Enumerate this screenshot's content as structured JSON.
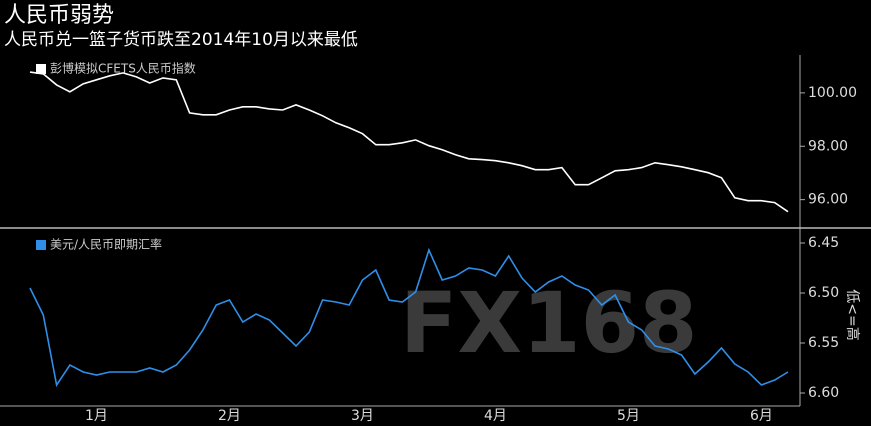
{
  "chart_data": [
    {
      "type": "line",
      "title": "人民币弱势",
      "subtitle": "人民币兑一篮子货币跌至2014年10月以来最低",
      "series": [
        {
          "name": "彭博模拟CFETS人民币指数",
          "color": "#ffffff",
          "values": [
            100.78,
            100.71,
            100.3,
            100.04,
            100.34,
            100.49,
            100.64,
            100.75,
            100.6,
            100.37,
            100.56,
            100.49,
            99.25,
            99.18,
            99.18,
            99.36,
            99.48,
            99.48,
            99.4,
            99.36,
            99.55,
            99.36,
            99.14,
            98.88,
            98.69,
            98.47,
            98.06,
            98.06,
            98.13,
            98.24,
            98.02,
            97.87,
            97.68,
            97.53,
            97.5,
            97.46,
            97.38,
            97.27,
            97.12,
            97.12,
            97.2,
            96.56,
            96.56,
            96.82,
            97.08,
            97.12,
            97.2,
            97.38,
            97.31,
            97.23,
            97.12,
            97.01,
            96.82,
            96.07,
            95.96,
            95.96,
            95.89,
            95.55
          ]
        }
      ],
      "ylim": [
        95.2,
        101.4
      ],
      "yticks": [
        {
          "value": 96,
          "label": "96.00"
        },
        {
          "value": 98,
          "label": "98.00"
        },
        {
          "value": 100,
          "label": "100.00"
        }
      ]
    },
    {
      "type": "line",
      "annotation": "低<=高",
      "watermark": "FX168",
      "categories": [
        null,
        null,
        null,
        null,
        null,
        "1月",
        null,
        null,
        null,
        null,
        null,
        null,
        null,
        null,
        null,
        "2月",
        null,
        null,
        null,
        null,
        null,
        null,
        null,
        null,
        null,
        "3月",
        null,
        null,
        null,
        null,
        null,
        null,
        null,
        null,
        null,
        "4月",
        null,
        null,
        null,
        null,
        null,
        null,
        null,
        null,
        null,
        "5月",
        null,
        null,
        null,
        null,
        null,
        null,
        null,
        null,
        null,
        "6月",
        null,
        null
      ],
      "series": [
        {
          "name": "美元/人民币即期汇率",
          "color": "#2f8fe8",
          "values": [
            6.495,
            6.522,
            6.592,
            6.572,
            6.579,
            6.582,
            6.579,
            6.579,
            6.579,
            6.575,
            6.579,
            6.572,
            6.557,
            6.537,
            6.512,
            6.507,
            6.529,
            6.521,
            6.527,
            6.54,
            6.553,
            6.539,
            6.507,
            6.509,
            6.512,
            6.487,
            6.477,
            6.507,
            6.509,
            6.499,
            6.457,
            6.487,
            6.483,
            6.475,
            6.477,
            6.483,
            6.463,
            6.485,
            6.499,
            6.489,
            6.483,
            6.492,
            6.497,
            6.512,
            6.502,
            6.529,
            6.537,
            6.553,
            6.556,
            6.562,
            6.581,
            6.569,
            6.555,
            6.571,
            6.579,
            6.592,
            6.587,
            6.579
          ]
        }
      ],
      "ylim": [
        6.615,
        6.44
      ],
      "yticks": [
        6.45,
        {
          "value": 6.5,
          "label": "6.50"
        },
        6.55,
        {
          "value": 6.6,
          "label": "6.60"
        }
      ]
    }
  ]
}
